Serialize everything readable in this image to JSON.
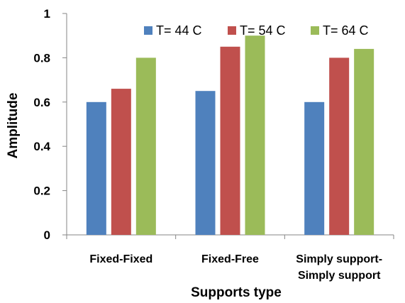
{
  "chart_data": {
    "type": "bar",
    "categories": [
      [
        "Fixed-Fixed"
      ],
      [
        "Fixed-Free"
      ],
      [
        "Simply support-",
        "Simply support"
      ]
    ],
    "series": [
      {
        "name": "T= 44 C",
        "color": "#4F81BD",
        "values": [
          0.6,
          0.65,
          0.6
        ]
      },
      {
        "name": "T= 54 C",
        "color": "#C0504D",
        "values": [
          0.66,
          0.85,
          0.8
        ]
      },
      {
        "name": "T= 64 C",
        "color": "#9BBB59",
        "values": [
          0.8,
          0.9,
          0.84
        ]
      }
    ],
    "xlabel": "Supports type",
    "ylabel": "Amplitude",
    "ylim": [
      0,
      1
    ],
    "yticks": [
      "0",
      "0.2",
      "0.4",
      "0.6",
      "0.8",
      "1"
    ],
    "grid": false,
    "legend_position": "top-right"
  }
}
